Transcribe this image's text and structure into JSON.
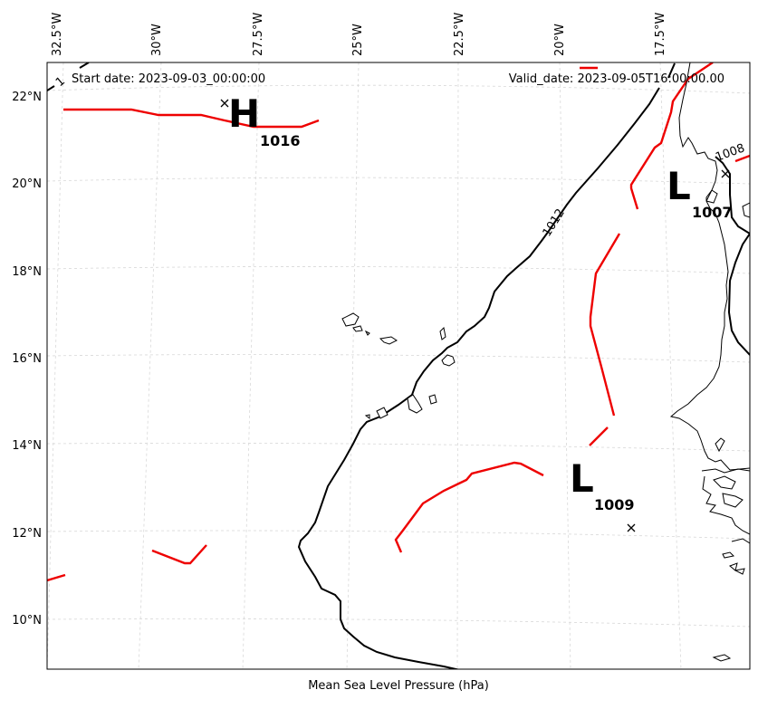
{
  "header": {
    "start_date": "Start date: 2023-09-03_00:00:00",
    "valid_date": "Valid_date: 2023-09-05T16:00:00.00"
  },
  "xlabel": "Mean Sea Level Pressure (hPa)",
  "lon_labels": [
    "32.5°W",
    "30°W",
    "27.5°W",
    "25°W",
    "22.5°W",
    "20°W",
    "17.5°W"
  ],
  "lat_labels": [
    "22°N",
    "20°N",
    "18°N",
    "16°N",
    "14°N",
    "12°N",
    "10°N"
  ],
  "contour_labels": {
    "c1012": "1012",
    "c1008": "1008",
    "c_edge": "1"
  },
  "pressure_centers": {
    "high": {
      "symbol": "H",
      "value": "1016"
    },
    "low_north": {
      "symbol": "L",
      "value": "1007"
    },
    "low_south": {
      "symbol": "L",
      "value": "1009"
    }
  },
  "colors": {
    "isobar": "#000000",
    "front": "#ee0000",
    "coast": "#000000",
    "grid": "#cccccc"
  }
}
